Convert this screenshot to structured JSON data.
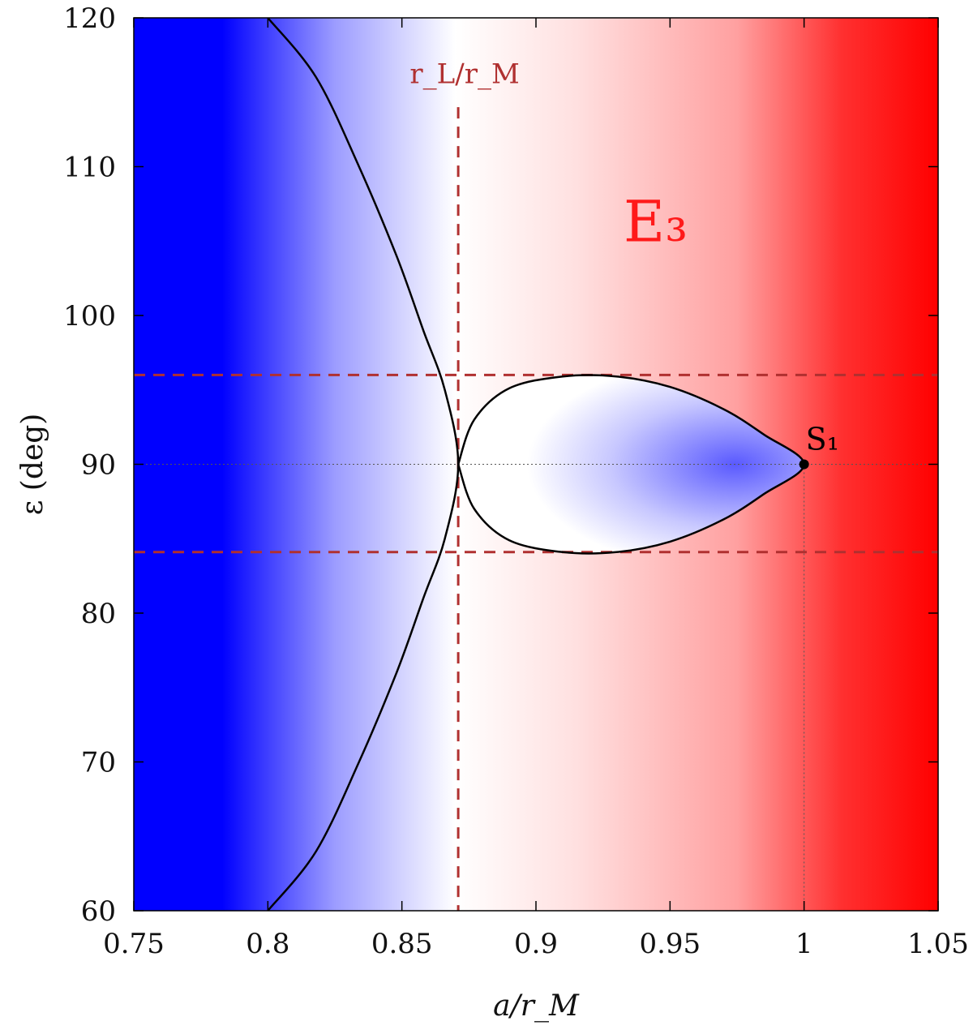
{
  "chart_data": {
    "type": "heatmap",
    "title": "",
    "xlabel": "a/r_M",
    "ylabel": "ε (deg)",
    "xlim": [
      0.75,
      1.05
    ],
    "ylim": [
      60,
      120
    ],
    "xticks": [
      0.75,
      0.8,
      0.85,
      0.9,
      0.95,
      1,
      1.05
    ],
    "xtick_labels": [
      "0.75",
      "0.8",
      "0.85",
      "0.9",
      "0.95",
      "1",
      "1.05"
    ],
    "yticks": [
      60,
      70,
      80,
      90,
      100,
      110,
      120
    ],
    "ytick_labels": [
      "60",
      "70",
      "80",
      "90",
      "100",
      "110",
      "120"
    ],
    "grid": false,
    "colormap": {
      "low": "#0000ff",
      "mid": "#ffffff",
      "high": "#ff0000"
    },
    "reference_lines": {
      "vertical_dashed_x": 0.871,
      "vertical_dashed_label": "r_L/r_M",
      "horizontal_dashed_y": [
        96,
        84.1
      ],
      "dashed_color": "#b03030",
      "dotted_horizontal_y": 90,
      "dotted_vertical_x": 1.0
    },
    "separatrix_outer_left": [
      [
        0.8,
        120
      ],
      [
        0.818,
        116
      ],
      [
        0.834,
        110
      ],
      [
        0.848,
        104
      ],
      [
        0.858,
        99
      ],
      [
        0.866,
        95
      ],
      [
        0.871,
        90
      ],
      [
        0.866,
        85
      ],
      [
        0.858,
        81
      ],
      [
        0.848,
        76
      ],
      [
        0.834,
        70
      ],
      [
        0.818,
        64
      ],
      [
        0.8,
        60
      ]
    ],
    "separatrix_island": [
      [
        0.871,
        90
      ],
      [
        0.877,
        93
      ],
      [
        0.89,
        95.1
      ],
      [
        0.91,
        95.9
      ],
      [
        0.93,
        95.9
      ],
      [
        0.95,
        95.2
      ],
      [
        0.97,
        93.7
      ],
      [
        0.985,
        92
      ],
      [
        1.0,
        90
      ],
      [
        0.985,
        88
      ],
      [
        0.97,
        86.3
      ],
      [
        0.95,
        84.8
      ],
      [
        0.93,
        84.1
      ],
      [
        0.91,
        84.1
      ],
      [
        0.89,
        84.9
      ],
      [
        0.877,
        87
      ],
      [
        0.871,
        90
      ]
    ],
    "point": {
      "label": "S₁",
      "x": 1.0,
      "y": 90
    },
    "region_label": "E₃",
    "region_label_position": {
      "x": 0.99,
      "y": 105
    }
  }
}
